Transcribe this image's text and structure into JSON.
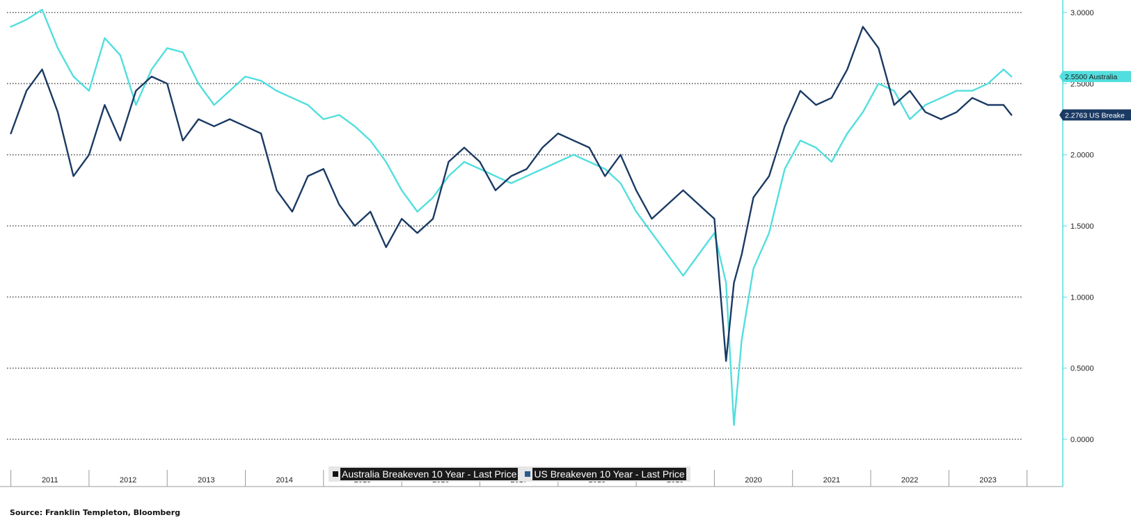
{
  "source": "Source: Franklin Templeton, Bloomberg",
  "chart_data": {
    "type": "line",
    "title": "",
    "xlabel": "",
    "ylabel": "",
    "ylim": [
      0,
      3.0
    ],
    "xlim": [
      2010.95,
      2023.95
    ],
    "yticks": [
      "3.0000",
      "2.5000",
      "2.0000",
      "1.5000",
      "1.0000",
      "0.5000",
      "0.0000"
    ],
    "ytick_values": [
      3.0,
      2.5,
      2.0,
      1.5,
      1.0,
      0.5,
      0.0
    ],
    "xticks": [
      "2011",
      "2012",
      "2013",
      "2014",
      "2015",
      "2016",
      "2017",
      "2018",
      "2019",
      "2020",
      "2021",
      "2022",
      "2023"
    ],
    "grid": true,
    "legend_position": "bottom-center",
    "series": [
      {
        "name": "Australia Breakeven 10 Year - Last Price",
        "color": "#52dede",
        "last_label": "2.5500 Australia",
        "x": [
          2011.0,
          2011.2,
          2011.4,
          2011.6,
          2011.8,
          2012.0,
          2012.2,
          2012.4,
          2012.6,
          2012.8,
          2013.0,
          2013.2,
          2013.4,
          2013.6,
          2013.8,
          2014.0,
          2014.2,
          2014.4,
          2014.6,
          2014.8,
          2015.0,
          2015.2,
          2015.4,
          2015.6,
          2015.8,
          2016.0,
          2016.2,
          2016.4,
          2016.6,
          2016.8,
          2017.0,
          2017.2,
          2017.4,
          2017.6,
          2017.8,
          2018.0,
          2018.2,
          2018.4,
          2018.6,
          2018.8,
          2019.0,
          2019.2,
          2019.4,
          2019.6,
          2019.8,
          2020.0,
          2020.15,
          2020.25,
          2020.35,
          2020.5,
          2020.7,
          2020.9,
          2021.1,
          2021.3,
          2021.5,
          2021.7,
          2021.9,
          2022.1,
          2022.3,
          2022.5,
          2022.7,
          2022.9,
          2023.1,
          2023.3,
          2023.5,
          2023.7,
          2023.8
        ],
        "values": [
          2.9,
          2.95,
          3.02,
          2.75,
          2.55,
          2.45,
          2.82,
          2.7,
          2.35,
          2.6,
          2.75,
          2.72,
          2.5,
          2.35,
          2.45,
          2.55,
          2.52,
          2.45,
          2.4,
          2.35,
          2.25,
          2.28,
          2.2,
          2.1,
          1.95,
          1.75,
          1.6,
          1.7,
          1.85,
          1.95,
          1.9,
          1.85,
          1.8,
          1.85,
          1.9,
          1.95,
          2.0,
          1.95,
          1.9,
          1.8,
          1.6,
          1.45,
          1.3,
          1.15,
          1.3,
          1.45,
          1.1,
          0.1,
          0.7,
          1.2,
          1.45,
          1.9,
          2.1,
          2.05,
          1.95,
          2.15,
          2.3,
          2.5,
          2.45,
          2.25,
          2.35,
          2.4,
          2.45,
          2.45,
          2.5,
          2.6,
          2.55
        ]
      },
      {
        "name": "US Breakeven 10 Year - Last Price",
        "color": "#1a3a63",
        "last_label": "2.2763 US Breake",
        "x": [
          2011.0,
          2011.2,
          2011.4,
          2011.6,
          2011.8,
          2012.0,
          2012.2,
          2012.4,
          2012.6,
          2012.8,
          2013.0,
          2013.2,
          2013.4,
          2013.6,
          2013.8,
          2014.0,
          2014.2,
          2014.4,
          2014.6,
          2014.8,
          2015.0,
          2015.2,
          2015.4,
          2015.6,
          2015.8,
          2016.0,
          2016.2,
          2016.4,
          2016.6,
          2016.8,
          2017.0,
          2017.2,
          2017.4,
          2017.6,
          2017.8,
          2018.0,
          2018.2,
          2018.4,
          2018.6,
          2018.8,
          2019.0,
          2019.2,
          2019.4,
          2019.6,
          2019.8,
          2020.0,
          2020.15,
          2020.25,
          2020.35,
          2020.5,
          2020.7,
          2020.9,
          2021.1,
          2021.3,
          2021.5,
          2021.7,
          2021.9,
          2022.1,
          2022.3,
          2022.5,
          2022.7,
          2022.9,
          2023.1,
          2023.3,
          2023.5,
          2023.7,
          2023.8
        ],
        "values": [
          2.15,
          2.45,
          2.6,
          2.3,
          1.85,
          2.0,
          2.35,
          2.1,
          2.45,
          2.55,
          2.5,
          2.1,
          2.25,
          2.2,
          2.25,
          2.2,
          2.15,
          1.75,
          1.6,
          1.85,
          1.9,
          1.65,
          1.5,
          1.6,
          1.35,
          1.55,
          1.45,
          1.55,
          1.95,
          2.05,
          1.95,
          1.75,
          1.85,
          1.9,
          2.05,
          2.15,
          2.1,
          2.05,
          1.85,
          2.0,
          1.75,
          1.55,
          1.65,
          1.75,
          1.65,
          1.55,
          0.55,
          1.1,
          1.3,
          1.7,
          1.85,
          2.2,
          2.45,
          2.35,
          2.4,
          2.6,
          2.9,
          2.75,
          2.35,
          2.45,
          2.3,
          2.25,
          2.3,
          2.4,
          2.35,
          2.35,
          2.28
        ]
      }
    ]
  }
}
